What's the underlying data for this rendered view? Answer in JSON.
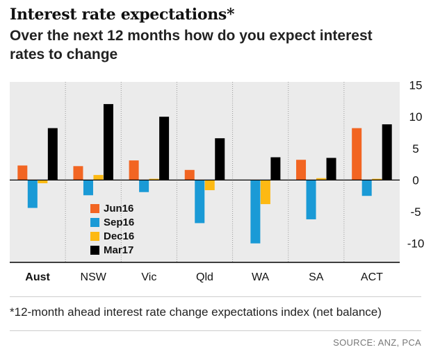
{
  "title": "Interest rate expectations*",
  "subtitle": "Over the next 12 months how do you expect interest rates to change",
  "footnote": "*12-month ahead interest rate change expectations index (net balance)",
  "source": "SOURCE: ANZ, PCA",
  "chart_data": {
    "type": "bar",
    "categories": [
      "Aust",
      "NSW",
      "Vic",
      "Qld",
      "WA",
      "SA",
      "ACT"
    ],
    "highlight_category": "Aust",
    "series": [
      {
        "name": "Jun16",
        "color": "#f26522",
        "values": [
          2.3,
          2.2,
          3.1,
          1.6,
          0,
          3.2,
          8.2
        ]
      },
      {
        "name": "Sep16",
        "color": "#1a9ad6",
        "values": [
          -4.4,
          -2.4,
          -1.9,
          -6.8,
          -10,
          -6.2,
          -2.5
        ]
      },
      {
        "name": "Dec16",
        "color": "#fdb913",
        "values": [
          -0.5,
          0.8,
          0.2,
          -1.6,
          -3.8,
          0.3,
          0.2
        ]
      },
      {
        "name": "Mar17",
        "color": "#000000",
        "values": [
          8.2,
          12,
          10,
          6.6,
          3.6,
          3.5,
          8.8
        ]
      }
    ],
    "yticks": [
      15,
      10,
      5,
      0,
      -5,
      -10
    ],
    "ylim": [
      -13,
      15.5
    ],
    "axis_side": "right",
    "legend": "inside-left-lower",
    "grid": false
  }
}
